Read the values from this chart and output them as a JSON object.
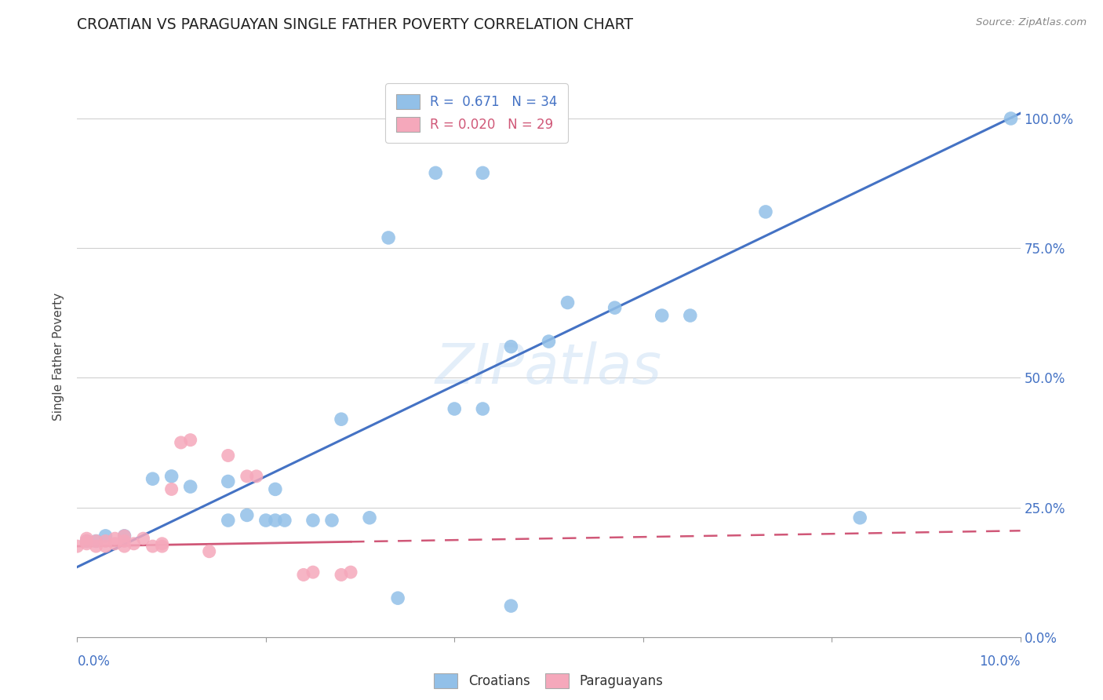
{
  "title": "CROATIAN VS PARAGUAYAN SINGLE FATHER POVERTY CORRELATION CHART",
  "source": "Source: ZipAtlas.com",
  "ylabel": "Single Father Poverty",
  "ytick_labels": [
    "0.0%",
    "25.0%",
    "50.0%",
    "75.0%",
    "100.0%"
  ],
  "ytick_values": [
    0.0,
    0.25,
    0.5,
    0.75,
    1.0
  ],
  "legend_r1": "R =  0.671   N = 34",
  "legend_r2": "R = 0.020   N = 29",
  "legend_bottom_1": "Croatians",
  "legend_bottom_2": "Paraguayans",
  "croatian_color": "#92c0e8",
  "paraguayan_color": "#f5a8bb",
  "trendline_croatian_color": "#4472c4",
  "trendline_paraguayan_color": "#d05878",
  "watermark": "ZIPatlas",
  "cr_trend_x0": 0.0,
  "cr_trend_y0": 0.135,
  "cr_trend_x1": 0.1,
  "cr_trend_y1": 1.01,
  "py_trend_x0": 0.0,
  "py_trend_y0": 0.175,
  "py_trend_x1": 0.1,
  "py_trend_y1": 0.205,
  "py_trend_solid_end": 0.029,
  "xmin": 0.0,
  "xmax": 0.1,
  "ymin": 0.0,
  "ymax": 1.08,
  "cr_x": [
    0.038,
    0.043,
    0.073,
    0.099,
    0.033,
    0.052,
    0.057,
    0.043,
    0.028,
    0.046,
    0.05,
    0.062,
    0.065,
    0.008,
    0.01,
    0.012,
    0.016,
    0.021,
    0.018,
    0.016,
    0.02,
    0.021,
    0.022,
    0.025,
    0.003,
    0.005,
    0.001,
    0.002,
    0.027,
    0.031,
    0.034,
    0.046,
    0.083,
    0.04
  ],
  "cr_y": [
    0.895,
    0.895,
    0.82,
    1.0,
    0.77,
    0.645,
    0.635,
    0.44,
    0.42,
    0.56,
    0.57,
    0.62,
    0.62,
    0.305,
    0.31,
    0.29,
    0.3,
    0.285,
    0.235,
    0.225,
    0.225,
    0.225,
    0.225,
    0.225,
    0.195,
    0.195,
    0.185,
    0.185,
    0.225,
    0.23,
    0.075,
    0.06,
    0.23,
    0.44
  ],
  "py_x": [
    0.0,
    0.001,
    0.001,
    0.001,
    0.002,
    0.002,
    0.003,
    0.003,
    0.004,
    0.004,
    0.005,
    0.005,
    0.005,
    0.006,
    0.007,
    0.008,
    0.009,
    0.009,
    0.01,
    0.011,
    0.012,
    0.014,
    0.016,
    0.018,
    0.019,
    0.024,
    0.025,
    0.028,
    0.029
  ],
  "py_y": [
    0.175,
    0.18,
    0.185,
    0.19,
    0.175,
    0.185,
    0.175,
    0.185,
    0.18,
    0.19,
    0.175,
    0.185,
    0.195,
    0.18,
    0.19,
    0.175,
    0.18,
    0.175,
    0.285,
    0.375,
    0.38,
    0.165,
    0.35,
    0.31,
    0.31,
    0.12,
    0.125,
    0.12,
    0.125
  ]
}
